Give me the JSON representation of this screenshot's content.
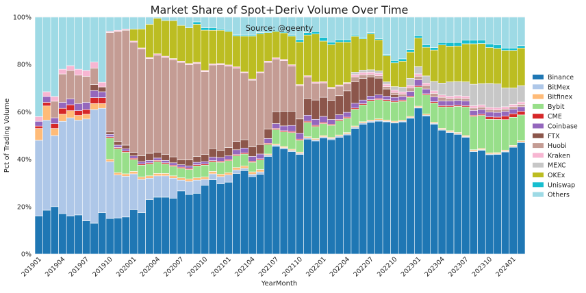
{
  "chart_data": {
    "type": "bar",
    "stacked": true,
    "title": "Market Share of Spot+Deriv Volume Over Time",
    "annotation": "Source: @geenty",
    "xlabel": "YearMonth",
    "ylabel": "Pct of Trading Volume",
    "ylim": [
      0,
      100
    ],
    "y_ticks": [
      "0%",
      "20%",
      "40%",
      "60%",
      "80%",
      "100%"
    ],
    "x_ticks": [
      "201901",
      "201904",
      "201907",
      "201910",
      "202001",
      "202004",
      "202007",
      "202010",
      "202101",
      "202104",
      "202107",
      "202110",
      "202201",
      "202204",
      "202207",
      "202210",
      "202301",
      "202304",
      "202307",
      "202310",
      "202401"
    ],
    "grid": true,
    "legend_position": "right",
    "categories": [
      "201901",
      "201902",
      "201903",
      "201904",
      "201905",
      "201906",
      "201907",
      "201908",
      "201909",
      "201910",
      "201911",
      "201912",
      "202001",
      "202002",
      "202003",
      "202004",
      "202005",
      "202006",
      "202007",
      "202008",
      "202009",
      "202010",
      "202011",
      "202012",
      "202101",
      "202102",
      "202103",
      "202104",
      "202105",
      "202106",
      "202107",
      "202108",
      "202109",
      "202110",
      "202111",
      "202112",
      "202201",
      "202202",
      "202203",
      "202204",
      "202205",
      "202206",
      "202207",
      "202208",
      "202209",
      "202210",
      "202211",
      "202212",
      "202301",
      "202302",
      "202303",
      "202304",
      "202305",
      "202306",
      "202307",
      "202308",
      "202309",
      "202310",
      "202311",
      "202312",
      "202401",
      "202402"
    ],
    "series": [
      {
        "name": "Binance",
        "color": "#1f77b4",
        "values": [
          16,
          18.5,
          20,
          17,
          16,
          16.5,
          14,
          13,
          17.5,
          15,
          15,
          15.5,
          18.5,
          17.5,
          23,
          24,
          24,
          23.5,
          26.5,
          25,
          25.5,
          29,
          31,
          29.5,
          30,
          34,
          35,
          32.5,
          33.5,
          41,
          45,
          43.5,
          43,
          42,
          48,
          47,
          48.5,
          48,
          49,
          50,
          52.5,
          54,
          55,
          55.5,
          55.5,
          55,
          56,
          57,
          61,
          58,
          54,
          52,
          51,
          50.5,
          49,
          43,
          44,
          41.5,
          42,
          43.5,
          45.5,
          47.5
        ]
      },
      {
        "name": "BitMex",
        "color": "#aec7e8",
        "values": [
          32,
          38,
          30,
          39,
          41.5,
          40,
          43,
          48,
          44,
          24,
          18,
          17,
          15,
          14,
          9,
          9,
          9,
          8.5,
          4.5,
          5.5,
          5.5,
          2.5,
          2.5,
          3,
          3,
          1.5,
          1,
          1,
          1,
          0.5,
          0.5,
          0.5,
          0.5,
          0.5,
          0.5,
          0.5,
          0.5,
          0.5,
          0.5,
          0.5,
          0.5,
          0.5,
          0.5,
          0.5,
          0.3,
          0.3,
          0.3,
          0.3,
          0.3,
          0.3,
          0.3,
          0.3,
          0.3,
          0.3,
          0.3,
          0.3,
          0.3,
          0.3,
          0.3,
          0.3,
          0.3,
          0.3
        ]
      },
      {
        "name": "Bitfinex",
        "color": "#ffbb78",
        "values": [
          5,
          6,
          3,
          3,
          3,
          2,
          2,
          2.5,
          2,
          1,
          1,
          1,
          1,
          1,
          1,
          1,
          1,
          1,
          1,
          1,
          1,
          1,
          1,
          1,
          1,
          1,
          1,
          1,
          1,
          0.5,
          0.5,
          0.5,
          0.5,
          0.5,
          0.5,
          0.5,
          0.5,
          0.5,
          0.5,
          0.5,
          0.5,
          0.5,
          0.5,
          0.5,
          0.5,
          0.5,
          0.5,
          0.5,
          0.5,
          0.5,
          0.5,
          0.5,
          0.5,
          0.5,
          0.5,
          0.5,
          0.5,
          0.5,
          0.5,
          0.5,
          0.5,
          0.5
        ]
      },
      {
        "name": "Bybit",
        "color": "#98df8a",
        "values": [
          0,
          0,
          0,
          0,
          0,
          0,
          0,
          0,
          0,
          9,
          10,
          9,
          5,
          5,
          5,
          5,
          4,
          4,
          4,
          4,
          5,
          5,
          4,
          5,
          5,
          5,
          5,
          4,
          4,
          4,
          6,
          6,
          7,
          5,
          6,
          5,
          5,
          5,
          6,
          6,
          7,
          7,
          8,
          8,
          8,
          8,
          8,
          8,
          8,
          8,
          8,
          9,
          10,
          11,
          12,
          14,
          14,
          14,
          14,
          13,
          12,
          11
        ]
      },
      {
        "name": "CME",
        "color": "#d62728",
        "values": [
          1,
          1.5,
          2,
          2.5,
          2.5,
          2,
          2,
          2.5,
          2.5,
          0.5,
          0.5,
          0.5,
          0.5,
          0.5,
          0.5,
          0.5,
          0.5,
          0.5,
          0.5,
          0.5,
          0.5,
          0.5,
          0.5,
          0.5,
          0.5,
          0.5,
          0.5,
          0.5,
          0.5,
          0.5,
          0.5,
          0.5,
          0.5,
          0.5,
          0.5,
          0.5,
          0.5,
          0.5,
          0.5,
          0.5,
          0.5,
          0.5,
          0.5,
          0.5,
          0.5,
          0.5,
          0.5,
          0.5,
          0.5,
          0.5,
          0.5,
          0.5,
          0.5,
          0.5,
          0.5,
          0.5,
          0.5,
          1,
          1,
          1.5,
          1.5,
          1.5
        ]
      },
      {
        "name": "Coinbase",
        "color": "#9467bd",
        "values": [
          2,
          2.5,
          2.5,
          2.5,
          2.5,
          3,
          3,
          3,
          2.5,
          1,
          1,
          1,
          1,
          1,
          1,
          1,
          1,
          1,
          1,
          1,
          1,
          1,
          1.5,
          1.5,
          1.5,
          2,
          2,
          2,
          2,
          2,
          2,
          2,
          2.5,
          2.5,
          2.5,
          2.5,
          2.5,
          2,
          2,
          2,
          2,
          1.5,
          1.5,
          1.5,
          1.5,
          1.5,
          1.5,
          2,
          2.5,
          2,
          2,
          2,
          2,
          2,
          2,
          2,
          2,
          2,
          2,
          2,
          2,
          2
        ]
      },
      {
        "name": "FTX",
        "color": "#8c564b",
        "values": [
          0,
          0,
          0,
          0,
          0,
          0,
          0,
          2.5,
          2,
          1,
          1.5,
          1.5,
          1.5,
          2.5,
          3,
          2.5,
          2.5,
          2.5,
          2,
          2.5,
          2.5,
          3,
          3.5,
          3,
          3.5,
          3.5,
          3.5,
          4,
          4,
          4,
          5,
          6,
          6,
          6,
          7,
          8,
          8,
          8,
          8,
          9,
          9,
          9,
          8,
          7,
          3,
          1,
          0,
          0,
          0,
          0,
          0,
          0,
          0,
          0,
          0,
          0,
          0,
          0,
          0,
          0,
          0,
          0
        ]
      },
      {
        "name": "Huobi",
        "color": "#c49c94",
        "values": [
          0,
          0,
          7,
          12,
          12,
          12,
          11,
          7,
          0,
          42,
          46,
          48,
          46,
          45,
          40,
          41,
          41,
          41,
          41,
          40,
          39,
          35,
          35,
          36,
          34,
          31,
          28,
          28,
          30,
          28,
          22,
          21,
          19,
          14,
          9,
          7,
          6,
          5,
          4,
          3,
          2,
          1.5,
          1,
          1,
          1,
          1,
          1,
          1.5,
          1.5,
          1.5,
          1.5,
          1.5,
          1,
          1,
          1,
          1,
          1,
          1,
          1,
          1,
          1,
          1
        ]
      },
      {
        "name": "Kraken",
        "color": "#f7b6d2",
        "values": [
          2,
          2,
          2,
          2,
          2,
          2.5,
          2.5,
          2.5,
          2,
          0.5,
          0.5,
          0.5,
          0.5,
          0.5,
          0.5,
          0.5,
          0.5,
          0.5,
          0.5,
          0.5,
          0.5,
          0.5,
          0.5,
          0.5,
          0.5,
          0.5,
          0.5,
          0.5,
          0.5,
          0.5,
          0.5,
          0.5,
          0.5,
          0.5,
          0.5,
          0.5,
          0.5,
          0.5,
          0.5,
          0.5,
          1,
          1,
          1,
          1,
          1,
          1,
          1,
          1,
          1,
          1,
          1,
          1,
          1,
          1,
          1,
          1,
          1,
          1,
          1,
          1,
          1,
          1
        ]
      },
      {
        "name": "MEXC",
        "color": "#c7c7c7",
        "values": [
          0,
          0,
          0,
          0,
          0,
          0,
          0,
          0,
          0,
          0,
          0,
          0,
          0,
          0,
          0,
          0,
          0,
          0,
          0,
          0,
          0,
          0,
          0,
          0,
          0,
          0,
          0,
          0,
          0,
          0,
          0,
          0,
          0,
          0,
          0,
          0,
          0,
          0,
          0,
          0,
          1,
          1,
          1,
          1,
          1,
          1.5,
          2,
          3,
          3,
          3,
          4,
          5,
          6,
          6,
          6,
          9,
          9,
          10,
          10,
          8,
          7,
          7
        ]
      },
      {
        "name": "OKEx",
        "color": "#bcbd22",
        "values": [
          0,
          0,
          0,
          0,
          0,
          0,
          0,
          0,
          0,
          0,
          0,
          0,
          5,
          8,
          14,
          15,
          15,
          16,
          15,
          15,
          16,
          17,
          14,
          14,
          14,
          13,
          15,
          18,
          16,
          12,
          11,
          11,
          12,
          18,
          17,
          20,
          17,
          18,
          18,
          17,
          15,
          13,
          15,
          13,
          11,
          10,
          11,
          11,
          12,
          12,
          13,
          16,
          15,
          15,
          16,
          17,
          17,
          15,
          15,
          16,
          16,
          16
        ]
      },
      {
        "name": "Uniswap",
        "color": "#17becf",
        "values": [
          0,
          0,
          0,
          0,
          0,
          0,
          0,
          0,
          0,
          0,
          0,
          0,
          0,
          0,
          0,
          0,
          0,
          0,
          0,
          0,
          1,
          1,
          1,
          0.5,
          0.5,
          0.5,
          0.5,
          0.5,
          0.5,
          0.5,
          0.5,
          0.5,
          0.5,
          1,
          1,
          1,
          1.5,
          1,
          1,
          1,
          0.5,
          0.5,
          0.5,
          0.5,
          0.5,
          1,
          1,
          1,
          1,
          1,
          1,
          1,
          1.5,
          1.5,
          1.5,
          1.5,
          1.5,
          1.5,
          1.5,
          1,
          1,
          1
        ]
      },
      {
        "name": "Others",
        "color": "#9edae5",
        "values": [
          42,
          31.5,
          33.5,
          22,
          20.5,
          22,
          22.5,
          19,
          27.5,
          6,
          5.5,
          5,
          5,
          5,
          3,
          0.5,
          1.5,
          1.5,
          3.5,
          4.5,
          2,
          4.5,
          4.5,
          5,
          5.5,
          7.5,
          7.5,
          7.5,
          6.5,
          6,
          5.5,
          6,
          7.5,
          9.5,
          6.5,
          6,
          8.5,
          10.5,
          9.5,
          9.5,
          7.5,
          8.5,
          6.5,
          9,
          15.7,
          18.2,
          17.7,
          13.7,
          7.7,
          11.7,
          12.7,
          10.7,
          10.7,
          10.7,
          9.7,
          9.7,
          9.7,
          11.2,
          11.7,
          13.2,
          13.2,
          12.2
        ]
      }
    ]
  }
}
